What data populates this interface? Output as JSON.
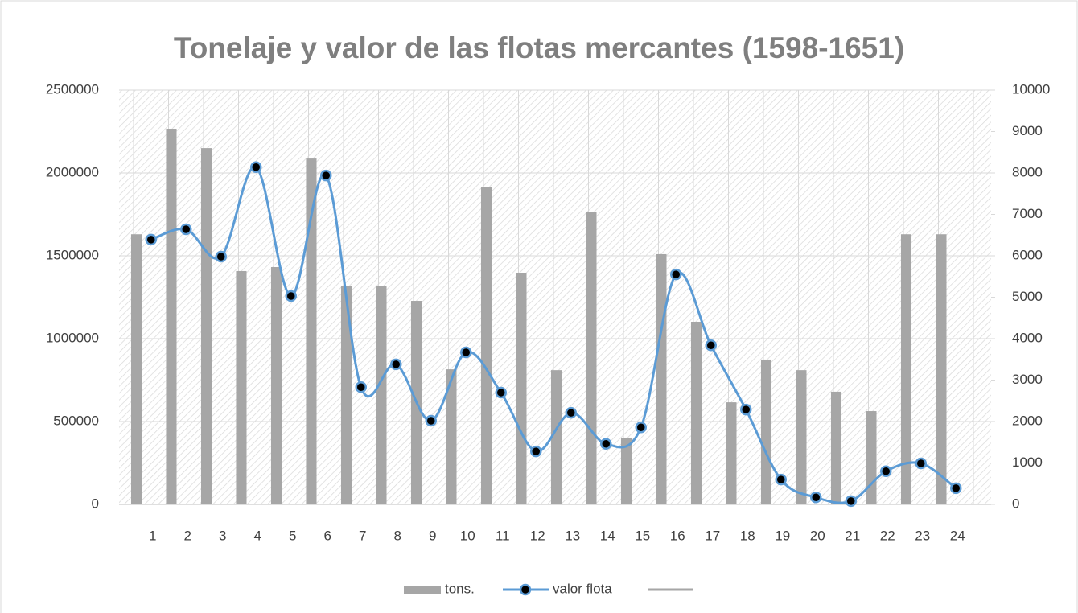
{
  "chart_data": {
    "type": "bar_line",
    "title": "Tonelaje y valor de las flotas mercantes (1598-1651)",
    "categories": [
      "1",
      "2",
      "3",
      "4",
      "5",
      "6",
      "7",
      "8",
      "9",
      "10",
      "11",
      "12",
      "13",
      "14",
      "15",
      "16",
      "17",
      "18",
      "19",
      "20",
      "21",
      "22",
      "23",
      "24"
    ],
    "series": [
      {
        "name": "tons.",
        "type": "bar",
        "color": "#a6a6a6",
        "values": [
          1630000,
          2267000,
          2150000,
          1408000,
          1432000,
          2087000,
          1320000,
          1316000,
          1228000,
          815000,
          1917000,
          1398000,
          810000,
          1767000,
          403000,
          1510000,
          1102000,
          616000,
          874000,
          810000,
          680000,
          563000,
          1630000,
          1630000
        ]
      },
      {
        "name": "valor flota",
        "type": "line",
        "axis": "y2",
        "color": "#5b9bd5",
        "values": [
          6390,
          6640,
          5980,
          8140,
          5030,
          7940,
          2830,
          3380,
          2020,
          3670,
          2700,
          1280,
          2210,
          1460,
          1860,
          5550,
          3840,
          2290,
          600,
          170,
          80,
          800,
          990,
          390
        ]
      }
    ],
    "ylim": [
      0,
      2500000
    ],
    "yticks": [
      0,
      500000,
      1000000,
      1500000,
      2000000,
      2500000
    ],
    "y2lim": [
      0,
      10000
    ],
    "y2ticks": [
      0,
      1000,
      2000,
      3000,
      4000,
      5000,
      6000,
      7000,
      8000,
      9000,
      10000
    ],
    "grid": true
  }
}
